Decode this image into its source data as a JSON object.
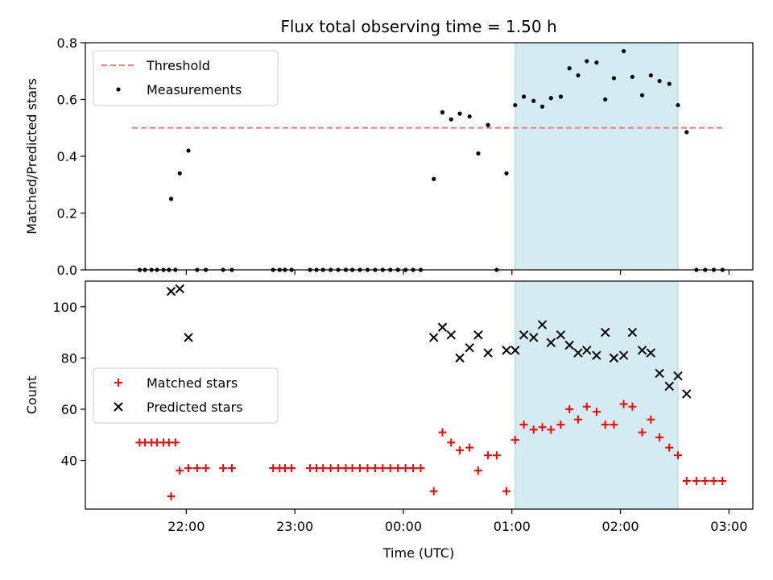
{
  "chart_data": {
    "type": "scatter",
    "title": "Flux total observing time = 1.50 h",
    "xlabel": "Time (UTC)",
    "x_ticks": [
      "22:00",
      "23:00",
      "00:00",
      "01:00",
      "02:00",
      "03:00"
    ],
    "x_tick_hours": [
      22.0,
      23.0,
      24.0,
      25.0,
      26.0,
      27.0
    ],
    "xlim_hours": [
      21.07,
      27.22
    ],
    "shaded_interval_hours": [
      25.03,
      26.53
    ],
    "shade_color": "#d4ebf1",
    "panels": [
      {
        "ylabel": "Matched/Predicted stars",
        "ylim": [
          0,
          0.8
        ],
        "y_ticks": [
          0,
          0.2,
          0.4,
          0.6,
          0.8
        ],
        "y_tick_labels": [
          "0.0",
          "0.2",
          "0.4",
          "0.6",
          "0.8"
        ],
        "legend": {
          "position": "upper-left",
          "entries": [
            "Threshold",
            "Measurements"
          ]
        },
        "threshold": {
          "name": "Threshold",
          "value": 0.5,
          "x_range_hours": [
            21.5,
            26.95
          ],
          "color": "#f57f7f"
        },
        "series": [
          {
            "name": "Measurements",
            "color": "#000000",
            "marker": "dot",
            "points": [
              [
                21.57,
                0
              ],
              [
                21.62,
                0
              ],
              [
                21.68,
                0
              ],
              [
                21.73,
                0
              ],
              [
                21.79,
                0
              ],
              [
                21.84,
                0
              ],
              [
                21.9,
                0
              ],
              [
                21.86,
                0.25
              ],
              [
                21.94,
                0.34
              ],
              [
                22.02,
                0.42
              ],
              [
                22.1,
                0
              ],
              [
                22.18,
                0
              ],
              [
                22.34,
                0
              ],
              [
                22.42,
                0
              ],
              [
                22.8,
                0
              ],
              [
                22.86,
                0
              ],
              [
                22.91,
                0
              ],
              [
                22.97,
                0
              ],
              [
                23.14,
                0
              ],
              [
                23.2,
                0
              ],
              [
                23.26,
                0
              ],
              [
                23.33,
                0
              ],
              [
                23.4,
                0
              ],
              [
                23.47,
                0
              ],
              [
                23.53,
                0
              ],
              [
                23.6,
                0
              ],
              [
                23.67,
                0
              ],
              [
                23.74,
                0
              ],
              [
                23.81,
                0
              ],
              [
                23.88,
                0
              ],
              [
                23.95,
                0
              ],
              [
                24.02,
                0
              ],
              [
                24.09,
                0
              ],
              [
                24.16,
                0
              ],
              [
                24.28,
                0.32
              ],
              [
                24.36,
                0.555
              ],
              [
                24.44,
                0.53
              ],
              [
                24.52,
                0.55
              ],
              [
                24.61,
                0.54
              ],
              [
                24.69,
                0.41
              ],
              [
                24.78,
                0.51
              ],
              [
                24.86,
                0
              ],
              [
                24.95,
                0.34
              ],
              [
                25.03,
                0.58
              ],
              [
                25.11,
                0.61
              ],
              [
                25.2,
                0.595
              ],
              [
                25.28,
                0.575
              ],
              [
                25.36,
                0.605
              ],
              [
                25.45,
                0.61
              ],
              [
                25.53,
                0.71
              ],
              [
                25.61,
                0.685
              ],
              [
                25.69,
                0.735
              ],
              [
                25.78,
                0.73
              ],
              [
                25.86,
                0.6
              ],
              [
                25.94,
                0.675
              ],
              [
                26.03,
                0.77
              ],
              [
                26.11,
                0.68
              ],
              [
                26.2,
                0.615
              ],
              [
                26.28,
                0.685
              ],
              [
                26.36,
                0.665
              ],
              [
                26.45,
                0.655
              ],
              [
                26.53,
                0.58
              ],
              [
                26.61,
                0.485
              ],
              [
                26.7,
                0
              ],
              [
                26.78,
                0
              ],
              [
                26.86,
                0
              ],
              [
                26.94,
                0
              ]
            ]
          }
        ]
      },
      {
        "ylabel": "Count",
        "ylim": [
          21,
          110
        ],
        "y_ticks": [
          40,
          60,
          80,
          100
        ],
        "y_tick_labels": [
          "40",
          "60",
          "80",
          "100"
        ],
        "legend": {
          "position": "center-left",
          "entries": [
            "Matched stars",
            "Predicted stars"
          ]
        },
        "series": [
          {
            "name": "Matched stars",
            "color": "#ff0000",
            "marker": "plus",
            "points": [
              [
                21.57,
                47
              ],
              [
                21.62,
                47
              ],
              [
                21.68,
                47
              ],
              [
                21.73,
                47
              ],
              [
                21.79,
                47
              ],
              [
                21.84,
                47
              ],
              [
                21.9,
                47
              ],
              [
                21.86,
                26
              ],
              [
                21.94,
                36
              ],
              [
                22.02,
                37
              ],
              [
                22.1,
                37
              ],
              [
                22.18,
                37
              ],
              [
                22.34,
                37
              ],
              [
                22.42,
                37
              ],
              [
                22.8,
                37
              ],
              [
                22.86,
                37
              ],
              [
                22.91,
                37
              ],
              [
                22.97,
                37
              ],
              [
                23.14,
                37
              ],
              [
                23.2,
                37
              ],
              [
                23.26,
                37
              ],
              [
                23.33,
                37
              ],
              [
                23.4,
                37
              ],
              [
                23.47,
                37
              ],
              [
                23.53,
                37
              ],
              [
                23.6,
                37
              ],
              [
                23.67,
                37
              ],
              [
                23.74,
                37
              ],
              [
                23.81,
                37
              ],
              [
                23.88,
                37
              ],
              [
                23.95,
                37
              ],
              [
                24.02,
                37
              ],
              [
                24.09,
                37
              ],
              [
                24.16,
                37
              ],
              [
                24.28,
                28
              ],
              [
                24.36,
                51
              ],
              [
                24.44,
                47
              ],
              [
                24.52,
                44
              ],
              [
                24.61,
                45
              ],
              [
                24.69,
                36
              ],
              [
                24.78,
                42
              ],
              [
                24.86,
                42
              ],
              [
                24.95,
                28
              ],
              [
                25.03,
                48
              ],
              [
                25.11,
                54
              ],
              [
                25.2,
                52
              ],
              [
                25.28,
                53
              ],
              [
                25.36,
                52
              ],
              [
                25.45,
                54
              ],
              [
                25.53,
                60
              ],
              [
                25.61,
                56
              ],
              [
                25.69,
                61
              ],
              [
                25.78,
                59
              ],
              [
                25.86,
                54
              ],
              [
                25.94,
                54
              ],
              [
                26.03,
                62
              ],
              [
                26.11,
                61
              ],
              [
                26.2,
                51
              ],
              [
                26.28,
                56
              ],
              [
                26.36,
                49
              ],
              [
                26.45,
                45
              ],
              [
                26.53,
                42
              ],
              [
                26.61,
                32
              ],
              [
                26.7,
                32
              ],
              [
                26.78,
                32
              ],
              [
                26.86,
                32
              ],
              [
                26.94,
                32
              ]
            ]
          },
          {
            "name": "Predicted stars",
            "color": "#000000",
            "marker": "x",
            "points": [
              [
                21.86,
                106
              ],
              [
                21.94,
                107
              ],
              [
                22.02,
                88
              ],
              [
                24.28,
                88
              ],
              [
                24.36,
                92
              ],
              [
                24.44,
                89
              ],
              [
                24.52,
                80
              ],
              [
                24.61,
                84
              ],
              [
                24.69,
                89
              ],
              [
                24.78,
                82
              ],
              [
                24.95,
                83
              ],
              [
                25.03,
                83
              ],
              [
                25.11,
                89
              ],
              [
                25.2,
                88
              ],
              [
                25.28,
                93
              ],
              [
                25.36,
                86
              ],
              [
                25.45,
                89
              ],
              [
                25.53,
                85
              ],
              [
                25.61,
                82
              ],
              [
                25.69,
                83
              ],
              [
                25.78,
                81
              ],
              [
                25.86,
                90
              ],
              [
                25.94,
                80
              ],
              [
                26.03,
                81
              ],
              [
                26.11,
                90
              ],
              [
                26.2,
                83
              ],
              [
                26.28,
                82
              ],
              [
                26.36,
                74
              ],
              [
                26.45,
                69
              ],
              [
                26.53,
                73
              ],
              [
                26.61,
                66
              ]
            ]
          }
        ]
      }
    ]
  }
}
